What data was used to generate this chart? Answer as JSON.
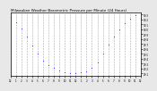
{
  "title": "Milwaukee Weather Barometric Pressure per Minute (24 Hours)",
  "title_fontsize": 3.0,
  "dot_color": "blue",
  "markersize": 1.2,
  "background_color": "#e8e8e8",
  "plot_bg_color": "#ffffff",
  "grid_color": "#aaaaaa",
  "grid_style": "--",
  "ylim": [
    29.05,
    30.35
  ],
  "xlim": [
    0,
    1440
  ],
  "xtick_positions": [
    0,
    60,
    120,
    180,
    240,
    300,
    360,
    420,
    480,
    540,
    600,
    660,
    720,
    780,
    840,
    900,
    960,
    1020,
    1080,
    1140,
    1200,
    1260,
    1320,
    1380,
    1440
  ],
  "xtick_labels": [
    "12",
    "1",
    "2",
    "3",
    "4",
    "5",
    "6",
    "7",
    "8",
    "9",
    "10",
    "11",
    "12",
    "1",
    "2",
    "3",
    "4",
    "5",
    "6",
    "7",
    "8",
    "9",
    "10",
    "11",
    "12"
  ],
  "ytick_vals": [
    29.1,
    29.2,
    29.3,
    29.4,
    29.5,
    29.6,
    29.7,
    29.8,
    29.9,
    30.0,
    30.1,
    30.2,
    30.3
  ],
  "pressure_minutes": [
    0,
    60,
    120,
    180,
    240,
    300,
    360,
    420,
    480,
    540,
    600,
    660,
    720,
    780,
    840,
    900,
    960,
    1020,
    1080,
    1140,
    1200,
    1260,
    1320,
    1380,
    1440
  ],
  "pressure_values": [
    30.25,
    30.15,
    30.02,
    29.85,
    29.67,
    29.5,
    29.36,
    29.28,
    29.22,
    29.17,
    29.13,
    29.11,
    29.1,
    29.12,
    29.15,
    29.22,
    29.33,
    29.5,
    29.68,
    29.85,
    30.0,
    30.12,
    30.22,
    30.28,
    30.24
  ]
}
